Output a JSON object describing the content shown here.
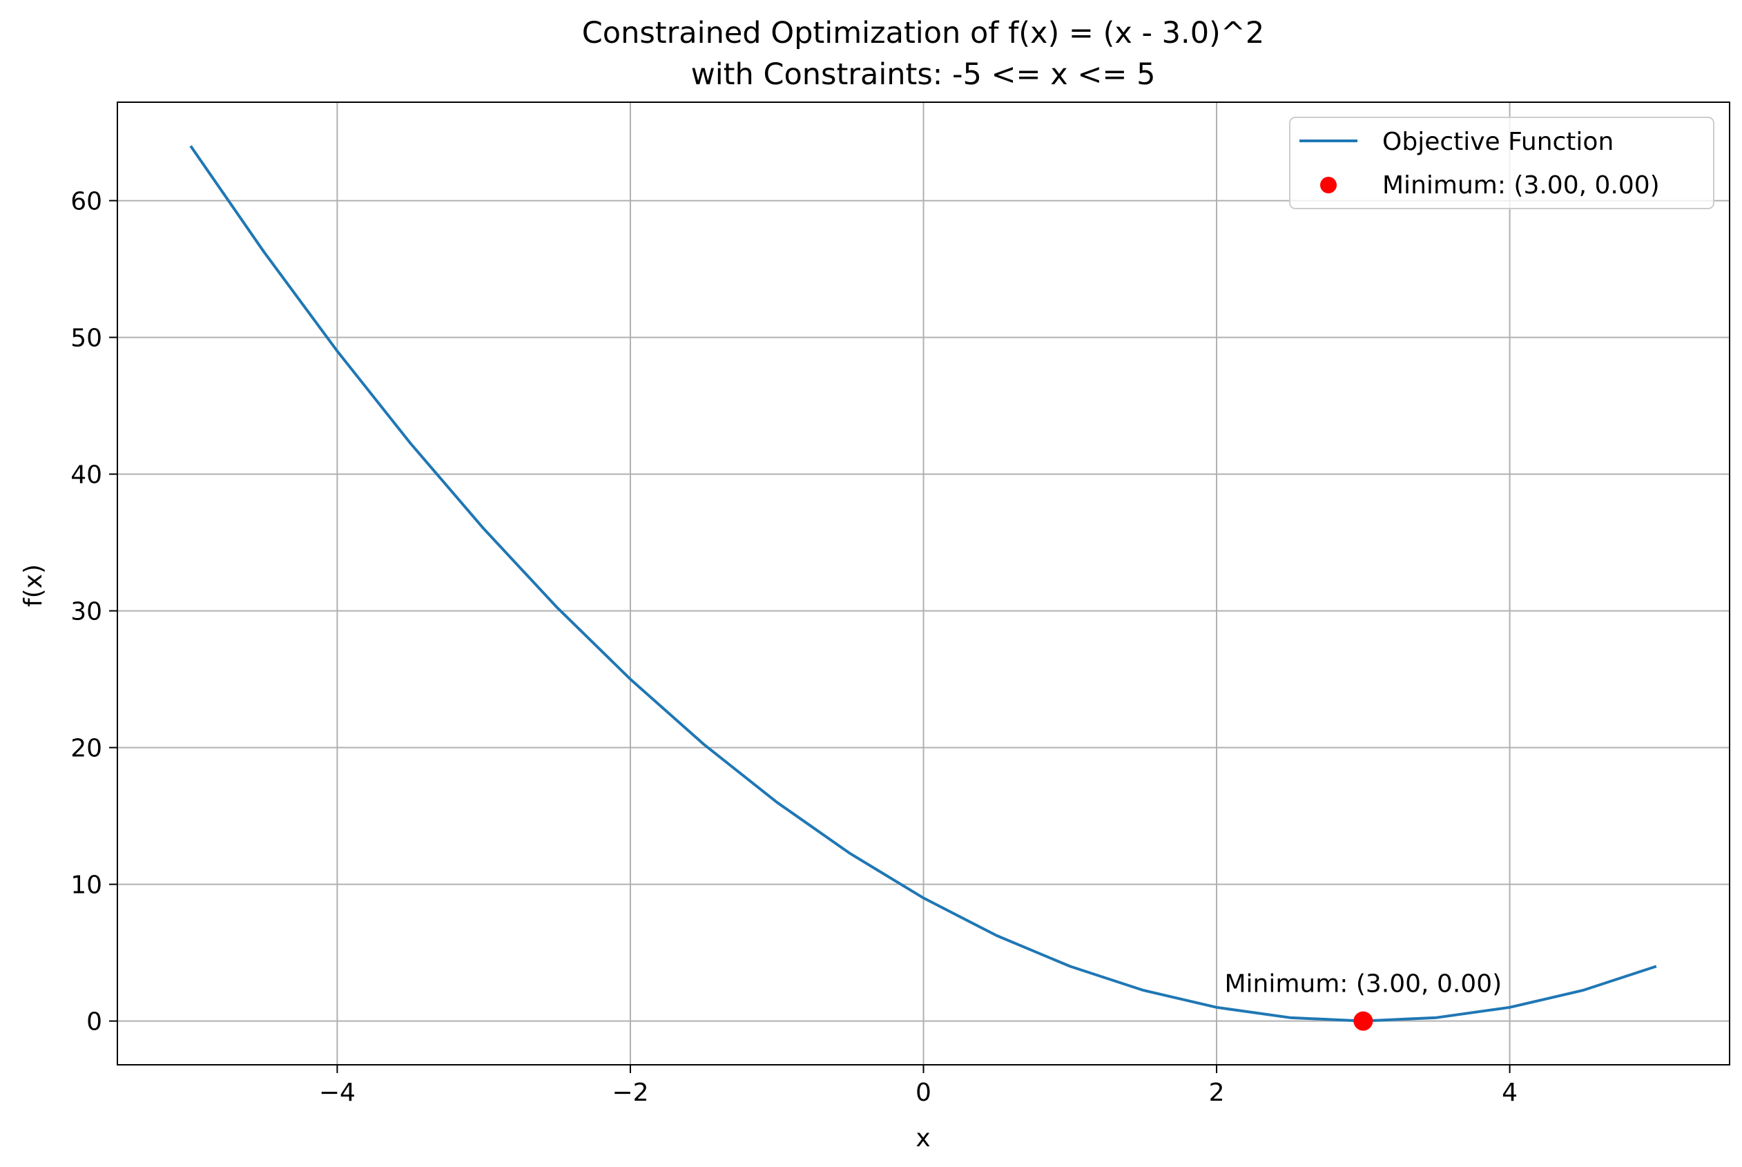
{
  "chart_data": {
    "type": "line",
    "title": "Constrained Optimization of f(x) = (x - 3.0)^2",
    "subtitle": "with Constraints: -5 <= x <= 5",
    "xlabel": "x",
    "ylabel": "f(x)",
    "xlim": [
      -5.5,
      5.5
    ],
    "ylim": [
      -3.2,
      67.2
    ],
    "grid": true,
    "legend_position": "top-right",
    "x_ticks": [
      {
        "value": -4,
        "label": "−4"
      },
      {
        "value": -2,
        "label": "−2"
      },
      {
        "value": 0,
        "label": "0"
      },
      {
        "value": 2,
        "label": "2"
      },
      {
        "value": 4,
        "label": "4"
      }
    ],
    "y_ticks": [
      {
        "value": 0,
        "label": "0"
      },
      {
        "value": 10,
        "label": "10"
      },
      {
        "value": 20,
        "label": "20"
      },
      {
        "value": 30,
        "label": "30"
      },
      {
        "value": 40,
        "label": "40"
      },
      {
        "value": 50,
        "label": "50"
      },
      {
        "value": 60,
        "label": "60"
      }
    ],
    "series": [
      {
        "name": "Objective Function",
        "kind": "line",
        "color": "#1f77b4",
        "x": [
          -5,
          -4.5,
          -4,
          -3.5,
          -3,
          -2.5,
          -2,
          -1.5,
          -1,
          -0.5,
          0,
          0.5,
          1,
          1.5,
          2,
          2.5,
          3,
          3.5,
          4,
          4.5,
          5
        ],
        "y": [
          64,
          56.25,
          49,
          42.25,
          36,
          30.25,
          25,
          20.25,
          16,
          12.25,
          9,
          6.25,
          4,
          2.25,
          1,
          0.25,
          0,
          0.25,
          1,
          2.25,
          4
        ]
      },
      {
        "name": "Minimum: (3.00, 0.00)",
        "kind": "scatter",
        "color": "#ff0000",
        "x": [
          3.0
        ],
        "y": [
          0.0
        ]
      }
    ],
    "annotations": [
      {
        "text": "Minimum: (3.00, 0.00)",
        "x": 3.0,
        "y": 0.0
      }
    ]
  }
}
